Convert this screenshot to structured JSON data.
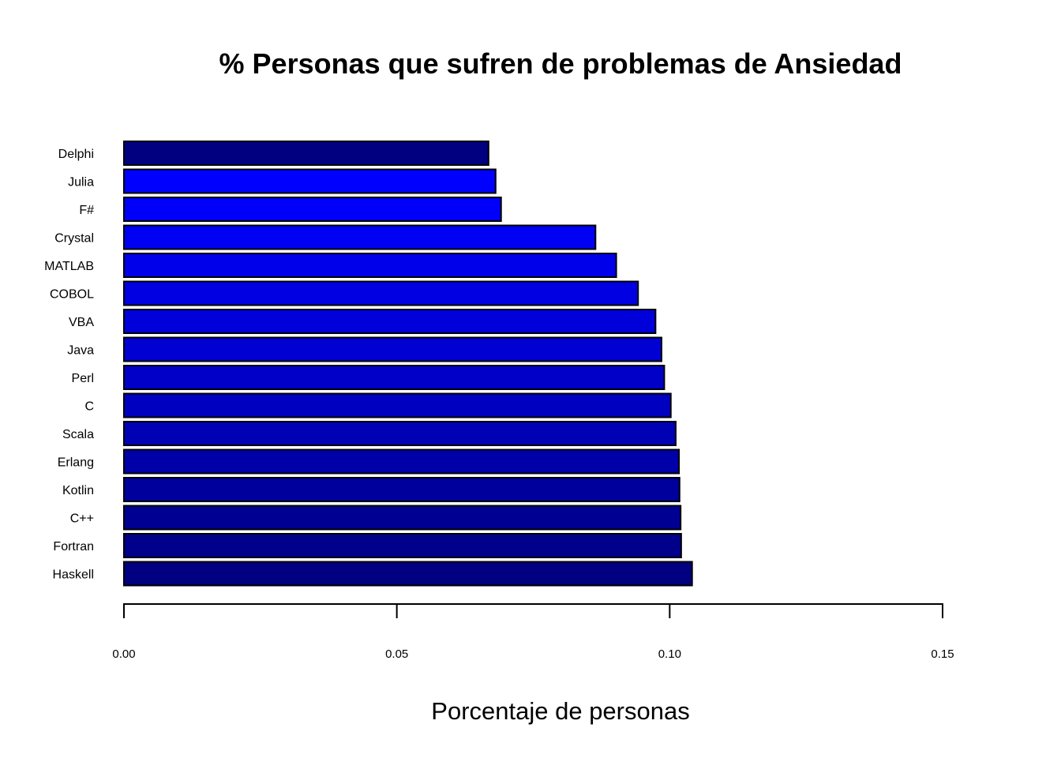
{
  "chart_data": {
    "type": "bar",
    "orientation": "horizontal",
    "title": "% Personas que sufren de problemas de Ansiedad",
    "xlabel": "Porcentaje de personas",
    "ylabel": "",
    "xlim": [
      0,
      0.15
    ],
    "x_ticks": [
      "0.00",
      "0.05",
      "0.10",
      "0.15"
    ],
    "x_tick_values": [
      0,
      0.05,
      0.1,
      0.15
    ],
    "grid": false,
    "legend": "none",
    "categories": [
      "Delphi",
      "Julia",
      "F#",
      "Crystal",
      "MATLAB",
      "COBOL",
      "VBA",
      "Java",
      "Perl",
      "C",
      "Scala",
      "Erlang",
      "Kotlin",
      "C++",
      "Fortran",
      "Haskell"
    ],
    "values": [
      0.0668,
      0.0681,
      0.0691,
      0.0864,
      0.0902,
      0.0942,
      0.0974,
      0.0985,
      0.099,
      0.1002,
      0.1011,
      0.1017,
      0.1018,
      0.102,
      0.1021,
      0.1041
    ],
    "colors": [
      "#000080",
      "#0000FF",
      "#0000FA",
      "#0000F2",
      "#0000EA",
      "#0000E2",
      "#0000DA",
      "#0000D2",
      "#0000C9",
      "#0000C0",
      "#0000B5",
      "#0000A8",
      "#00009C",
      "#000092",
      "#00008A",
      "#000080"
    ],
    "bar_border_color": "#000000"
  }
}
